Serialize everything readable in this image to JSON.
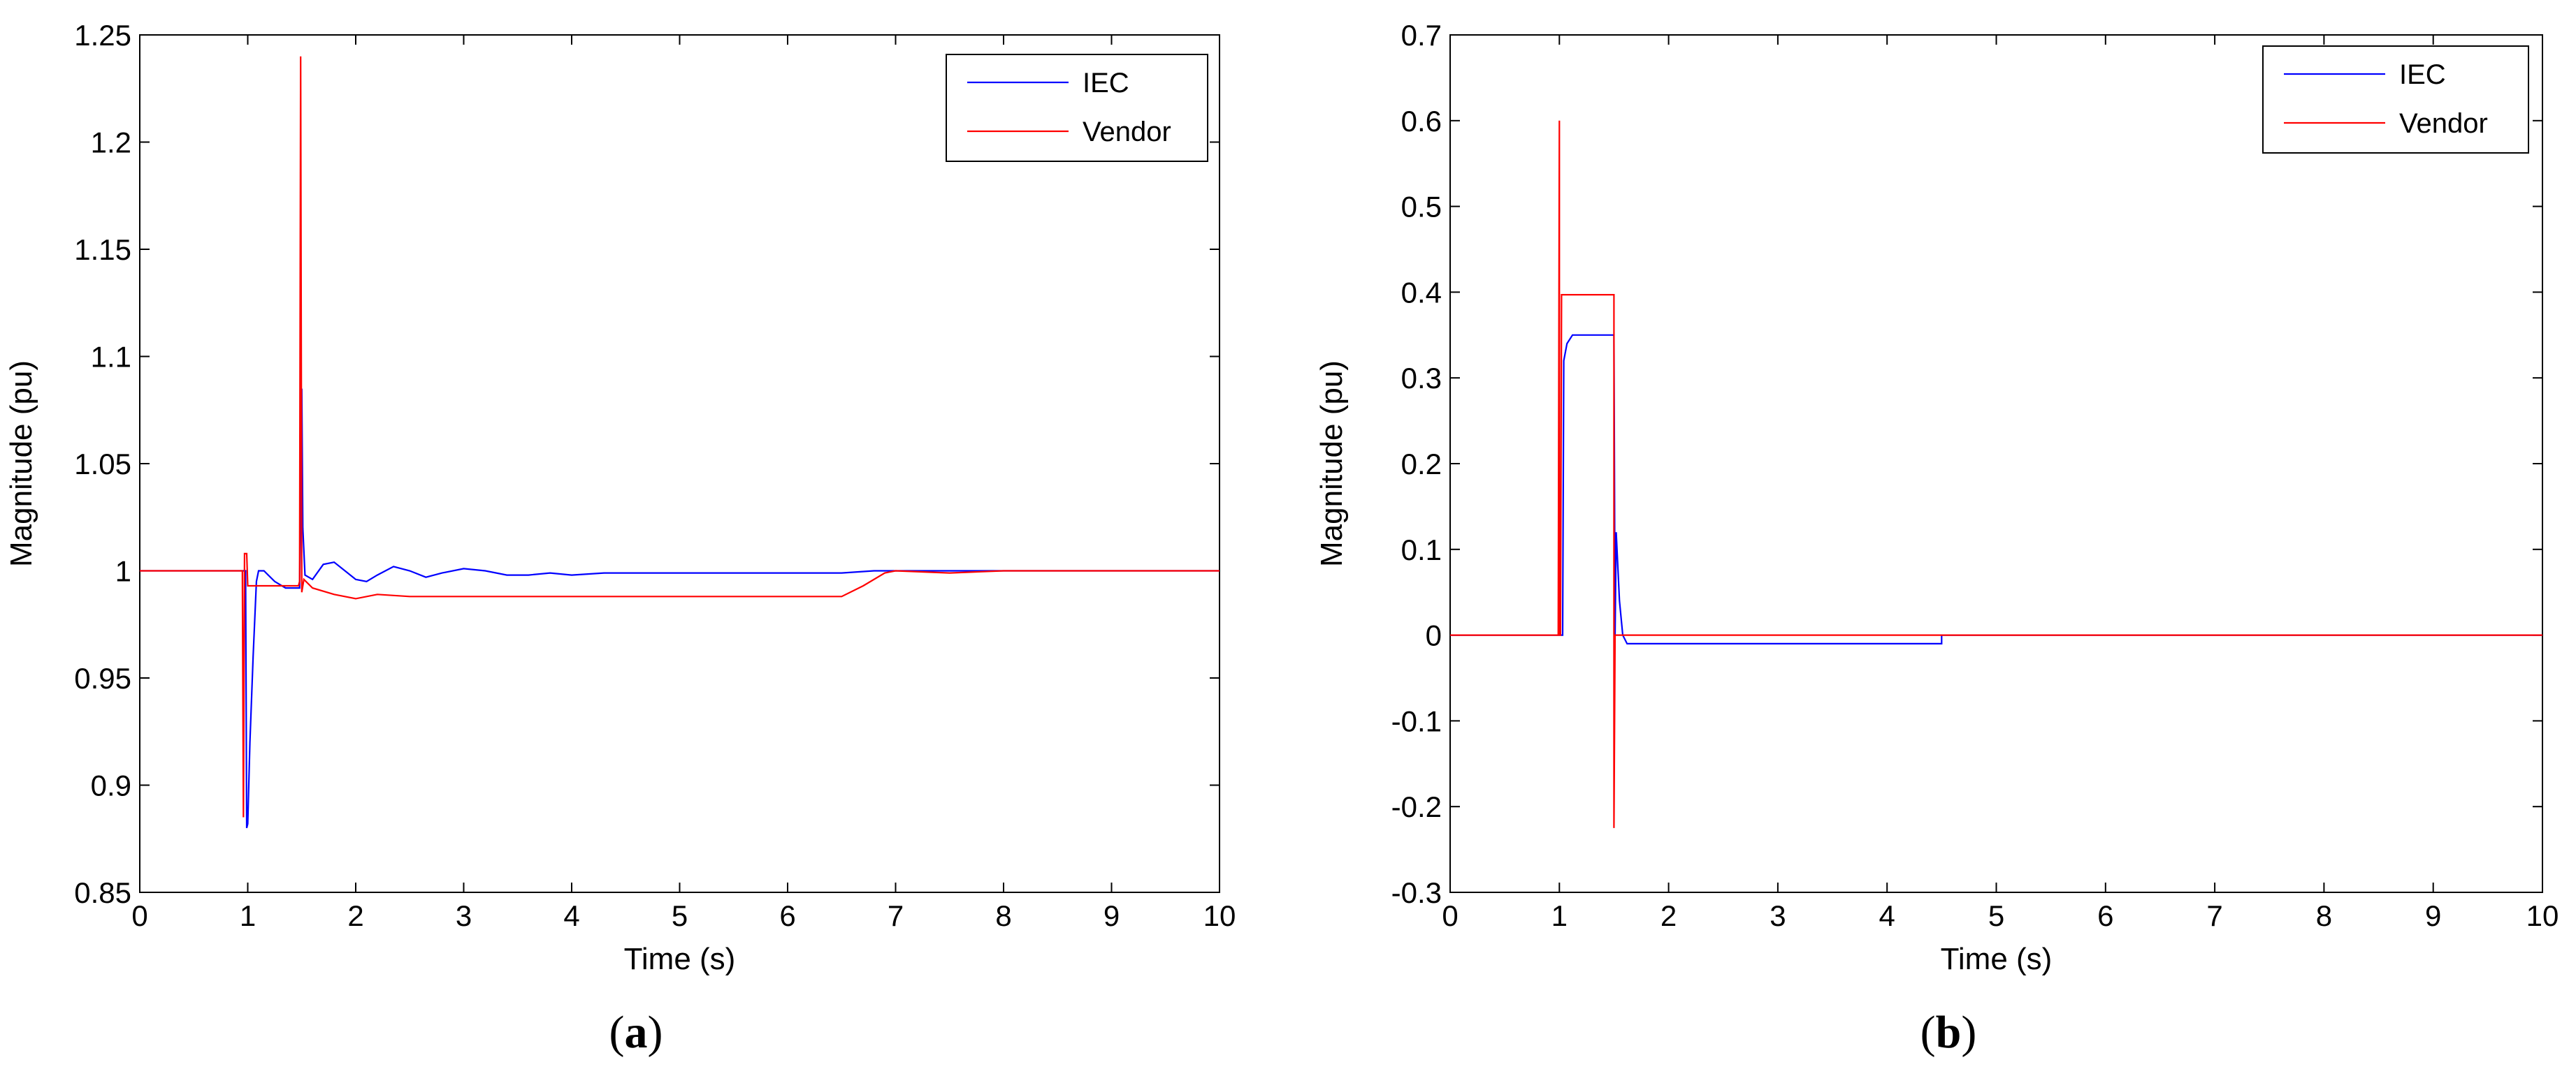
{
  "chart_data": [
    {
      "type": "line",
      "caption": "a",
      "xlabel": "Time (s)",
      "ylabel": "Magnitude (pu)",
      "xlim": [
        0,
        10
      ],
      "ylim": [
        0.85,
        1.25
      ],
      "xticks": [
        0,
        1,
        2,
        3,
        4,
        5,
        6,
        7,
        8,
        9,
        10
      ],
      "xtick_labels": [
        "0",
        "1",
        "2",
        "3",
        "4",
        "5",
        "6",
        "7",
        "8",
        "9",
        "10"
      ],
      "yticks": [
        0.85,
        0.9,
        0.95,
        1,
        1.05,
        1.1,
        1.15,
        1.2,
        1.25
      ],
      "ytick_labels": [
        "0.85",
        "0.9",
        "0.95",
        "1",
        "1.05",
        "1.1",
        "1.15",
        "1.2",
        "1.25"
      ],
      "grid": false,
      "legend_position": "top-right",
      "series": [
        {
          "name": "IEC",
          "color": "#0000ff",
          "points": [
            [
              0,
              1
            ],
            [
              0.98,
              1
            ],
            [
              0.99,
              0.88
            ],
            [
              1.0,
              0.882
            ],
            [
              1.02,
              0.92
            ],
            [
              1.05,
              0.96
            ],
            [
              1.08,
              0.995
            ],
            [
              1.1,
              1.0
            ],
            [
              1.15,
              1.0
            ],
            [
              1.25,
              0.995
            ],
            [
              1.35,
              0.992
            ],
            [
              1.48,
              0.992
            ],
            [
              1.49,
              1.04
            ],
            [
              1.5,
              1.085
            ],
            [
              1.51,
              1.02
            ],
            [
              1.53,
              0.998
            ],
            [
              1.6,
              0.996
            ],
            [
              1.7,
              1.003
            ],
            [
              1.8,
              1.004
            ],
            [
              1.9,
              1.0
            ],
            [
              2.0,
              0.996
            ],
            [
              2.1,
              0.995
            ],
            [
              2.2,
              0.998
            ],
            [
              2.35,
              1.002
            ],
            [
              2.5,
              1.0
            ],
            [
              2.65,
              0.997
            ],
            [
              2.8,
              0.999
            ],
            [
              3.0,
              1.001
            ],
            [
              3.2,
              1.0
            ],
            [
              3.4,
              0.998
            ],
            [
              3.6,
              0.998
            ],
            [
              3.8,
              0.999
            ],
            [
              4.0,
              0.998
            ],
            [
              4.3,
              0.999
            ],
            [
              4.6,
              0.999
            ],
            [
              5.0,
              0.999
            ],
            [
              5.5,
              0.999
            ],
            [
              6.0,
              0.999
            ],
            [
              6.5,
              0.999
            ],
            [
              6.8,
              1.0
            ],
            [
              7.0,
              1.0
            ],
            [
              10,
              1.0
            ]
          ]
        },
        {
          "name": "Vendor",
          "color": "#ff0000",
          "points": [
            [
              0,
              1
            ],
            [
              0.95,
              1
            ],
            [
              0.96,
              0.885
            ],
            [
              0.97,
              1.008
            ],
            [
              0.99,
              1.008
            ],
            [
              1.0,
              0.993
            ],
            [
              1.3,
              0.993
            ],
            [
              1.47,
              0.993
            ],
            [
              1.48,
              0.995
            ],
            [
              1.49,
              1.24
            ],
            [
              1.5,
              0.99
            ],
            [
              1.52,
              0.996
            ],
            [
              1.6,
              0.992
            ],
            [
              1.8,
              0.989
            ],
            [
              2.0,
              0.987
            ],
            [
              2.2,
              0.989
            ],
            [
              2.5,
              0.988
            ],
            [
              3.0,
              0.988
            ],
            [
              4.0,
              0.988
            ],
            [
              5.0,
              0.988
            ],
            [
              6.0,
              0.988
            ],
            [
              6.5,
              0.988
            ],
            [
              6.7,
              0.993
            ],
            [
              6.9,
              0.999
            ],
            [
              7.0,
              1.0
            ],
            [
              7.5,
              0.999
            ],
            [
              8.0,
              1.0
            ],
            [
              9.0,
              1.0
            ],
            [
              10,
              1.0
            ]
          ]
        }
      ]
    },
    {
      "type": "line",
      "caption": "b",
      "xlabel": "Time (s)",
      "ylabel": "Magnitude (pu)",
      "xlim": [
        0,
        10
      ],
      "ylim": [
        -0.3,
        0.7
      ],
      "xticks": [
        0,
        1,
        2,
        3,
        4,
        5,
        6,
        7,
        8,
        9,
        10
      ],
      "xtick_labels": [
        "0",
        "1",
        "2",
        "3",
        "4",
        "5",
        "6",
        "7",
        "8",
        "9",
        "10"
      ],
      "yticks": [
        -0.3,
        -0.2,
        -0.1,
        0,
        0.1,
        0.2,
        0.3,
        0.4,
        0.5,
        0.6,
        0.7
      ],
      "ytick_labels": [
        "-0.3",
        "-0.2",
        "-0.1",
        "0",
        "0.1",
        "0.2",
        "0.3",
        "0.4",
        "0.5",
        "0.6",
        "0.7"
      ],
      "grid": false,
      "legend_position": "top-right",
      "series": [
        {
          "name": "IEC",
          "color": "#0000ff",
          "points": [
            [
              0,
              0
            ],
            [
              1.03,
              0
            ],
            [
              1.04,
              0.32
            ],
            [
              1.07,
              0.34
            ],
            [
              1.12,
              0.35
            ],
            [
              1.5,
              0.35
            ],
            [
              1.51,
              0.0
            ],
            [
              1.52,
              0.12
            ],
            [
              1.55,
              0.04
            ],
            [
              1.58,
              0.0
            ],
            [
              1.62,
              -0.01
            ],
            [
              2.0,
              -0.01
            ],
            [
              4.5,
              -0.01
            ],
            [
              4.5,
              0.0
            ],
            [
              10,
              0
            ]
          ]
        },
        {
          "name": "Vendor",
          "color": "#ff0000",
          "points": [
            [
              0,
              0
            ],
            [
              0.99,
              0
            ],
            [
              1.0,
              0.6
            ],
            [
              1.0,
              0.0
            ],
            [
              1.01,
              0.0
            ],
            [
              1.02,
              0.397
            ],
            [
              1.5,
              0.397
            ],
            [
              1.5,
              0.0
            ],
            [
              1.5,
              -0.225
            ],
            [
              1.51,
              0.0
            ],
            [
              10,
              0
            ]
          ]
        }
      ]
    }
  ]
}
